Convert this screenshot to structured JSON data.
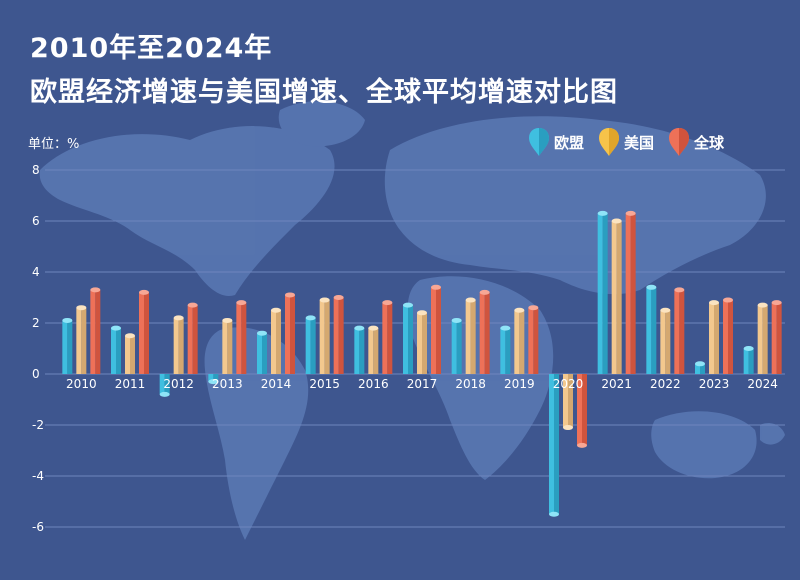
{
  "title_line1": "2010年至2024年",
  "title_line2": "欧盟经济增速与美国增速、全球平均增速对比图",
  "unit_label": "单位：%",
  "colors": {
    "background": "#3e568f",
    "map": "#5b7bb7",
    "grid": "#6e86be",
    "eu": "#3fbfe0",
    "us": "#f3c88e",
    "world": "#ee7158"
  },
  "legend": [
    {
      "name": "欧盟",
      "color": "#3fbfe0",
      "icon": "eu-pin-icon"
    },
    {
      "name": "美国",
      "color": "#f6c34a",
      "icon": "us-pin-icon"
    },
    {
      "name": "全球",
      "color": "#ee7158",
      "icon": "world-pin-icon"
    }
  ],
  "chart_data": {
    "type": "bar",
    "categories": [
      "2010",
      "2011",
      "2012",
      "2013",
      "2014",
      "2015",
      "2016",
      "2017",
      "2018",
      "2019",
      "2020",
      "2021",
      "2022",
      "2023",
      "2024"
    ],
    "series": [
      {
        "name": "欧盟",
        "values": [
          2.1,
          1.8,
          -0.8,
          -0.3,
          1.6,
          2.2,
          1.8,
          2.7,
          2.1,
          1.8,
          -5.5,
          6.3,
          3.4,
          0.4,
          1.0
        ]
      },
      {
        "name": "美国",
        "values": [
          2.6,
          1.5,
          2.2,
          2.1,
          2.5,
          2.9,
          1.8,
          2.4,
          2.9,
          2.5,
          -2.1,
          6.0,
          2.5,
          2.8,
          2.7
        ]
      },
      {
        "name": "全球",
        "values": [
          3.3,
          3.2,
          2.7,
          2.8,
          3.1,
          3.0,
          2.8,
          3.4,
          3.2,
          2.6,
          -2.8,
          6.3,
          3.3,
          2.9,
          2.8
        ]
      }
    ],
    "y_ticks": [
      "8",
      "6",
      "4",
      "2",
      "0",
      "-2",
      "-4",
      "-6"
    ],
    "ylim": [
      -6,
      8
    ],
    "grid": true,
    "legend_position": "top-right"
  }
}
